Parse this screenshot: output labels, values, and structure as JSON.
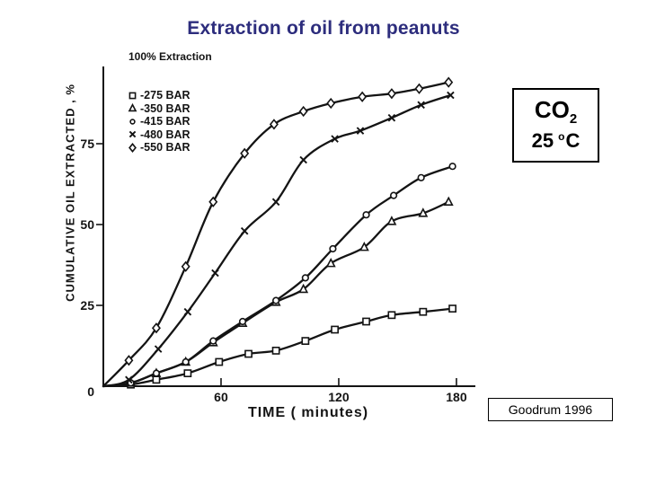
{
  "slide": {
    "background": "#ffffff"
  },
  "title": {
    "text": "Extraction of oil from peanuts",
    "color": "#2d2d7d"
  },
  "conditions_box": {
    "gas_base": "CO",
    "gas_subscript": "2",
    "temp_value": "25",
    "temp_degree": "o",
    "temp_unit": "C"
  },
  "citation_box": {
    "text": "Goodrum 1996"
  },
  "chart_data": {
    "type": "line",
    "title": "Extraction of oil from peanuts",
    "annotation": "100% Extraction",
    "xlabel": "TIME ( minutes)",
    "ylabel": "CUMULATIVE OIL EXTRACTED , %",
    "xlim": [
      0,
      190
    ],
    "ylim": [
      0,
      100
    ],
    "xticks": [
      60,
      120,
      180
    ],
    "yticks": [
      0,
      25,
      50,
      75
    ],
    "grid": false,
    "legend_position": "upper-left-inside",
    "ink_color": "#141414",
    "series": [
      {
        "name": "275 BAR",
        "marker": "square",
        "x": [
          0,
          14,
          27,
          43,
          59,
          74,
          88,
          103,
          118,
          134,
          147,
          163,
          178
        ],
        "y": [
          0,
          0.5,
          2,
          4,
          7.5,
          10,
          11,
          14,
          17.5,
          20,
          22,
          23,
          24
        ]
      },
      {
        "name": "350 BAR",
        "marker": "triangle",
        "x": [
          0,
          14,
          27,
          42,
          56,
          71,
          88,
          102,
          116,
          133,
          147,
          163,
          176
        ],
        "y": [
          0,
          1,
          4,
          7.5,
          13.5,
          19.5,
          26,
          30,
          38,
          43,
          51,
          53.5,
          57
        ]
      },
      {
        "name": "415 BAR",
        "marker": "circle",
        "x": [
          0,
          14,
          27,
          42,
          56,
          71,
          88,
          103,
          117,
          134,
          148,
          162,
          178
        ],
        "y": [
          0,
          1,
          4,
          7.5,
          14,
          20,
          26.5,
          33.5,
          42.5,
          53,
          59,
          64.5,
          68
        ]
      },
      {
        "name": "480 BAR",
        "marker": "x",
        "x": [
          0,
          13,
          28,
          43,
          57,
          72,
          88,
          102,
          118,
          131,
          147,
          162,
          177
        ],
        "y": [
          0,
          2,
          11.5,
          23,
          35,
          48,
          57,
          70,
          76.5,
          79,
          83,
          87,
          90
        ]
      },
      {
        "name": "550 BAR",
        "marker": "diamond",
        "x": [
          0,
          13,
          27,
          42,
          56,
          72,
          87,
          102,
          116,
          132,
          147,
          161,
          176
        ],
        "y": [
          0,
          8,
          18,
          37,
          57,
          72,
          81,
          85,
          87.5,
          89.5,
          90.5,
          92,
          94
        ]
      }
    ]
  }
}
